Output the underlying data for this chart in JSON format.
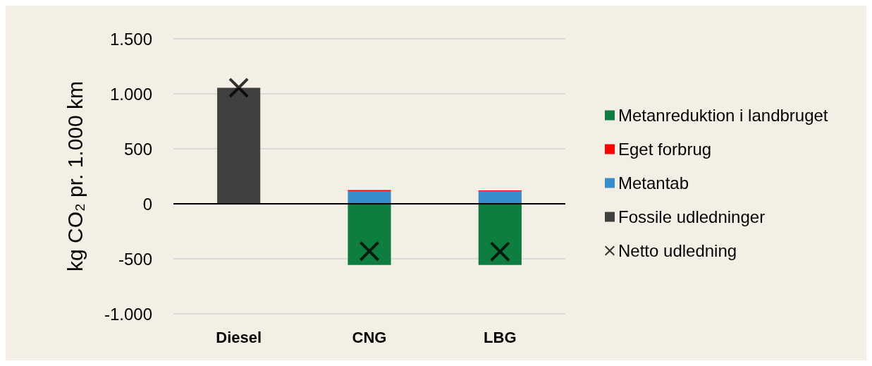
{
  "chart_data": {
    "type": "bar",
    "stacked": true,
    "ylabel": "kg CO₂ pr. 1.000 km",
    "categories": [
      "Diesel",
      "CNG",
      "LBG"
    ],
    "series": [
      {
        "name": "Fossile udledninger",
        "color": "#404040",
        "values": [
          1055,
          null,
          null
        ]
      },
      {
        "name": "Metantab",
        "color": "#388ecc",
        "values": [
          null,
          115,
          112
        ]
      },
      {
        "name": "Eget forbrug",
        "color": "#ff0000",
        "values": [
          null,
          10,
          10
        ]
      },
      {
        "name": "Metanreduktion i landbruget",
        "color": "#0e7d40",
        "values": [
          null,
          -556,
          -556
        ]
      },
      {
        "name": "Netto udledning",
        "type": "scatter",
        "marker": "cross",
        "color": "#000000",
        "x": [
          "Diesel",
          "CNG",
          "LBG"
        ],
        "values": [
          1055,
          -431,
          -434
        ]
      }
    ],
    "ylim": [
      -1000,
      1500
    ],
    "yticks": [
      {
        "value": -1000,
        "label": "-1.000"
      },
      -500,
      0,
      500,
      {
        "value": 1000,
        "label": "1.000"
      },
      {
        "value": 1500,
        "label": "1.500"
      }
    ],
    "grid": "y",
    "legend": "right"
  }
}
